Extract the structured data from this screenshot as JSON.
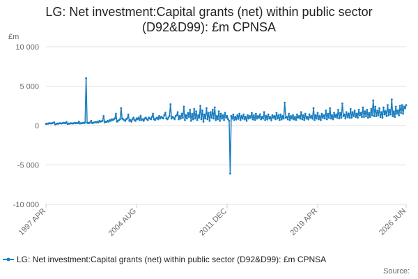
{
  "chart_data": {
    "type": "line",
    "title": "LG: Net investment:Capital grants (net) within public sector (D92&D99): £m CPNSA",
    "y_label": "£m",
    "source": "Source:",
    "categories": [
      "1997 APR",
      null,
      null,
      null,
      null,
      null,
      null,
      null,
      null,
      null,
      null,
      null,
      null,
      null,
      null,
      null,
      null,
      null,
      null,
      null,
      null,
      null,
      null,
      null,
      null,
      null,
      null,
      null,
      null,
      null,
      null,
      null,
      null,
      null,
      null,
      null,
      null,
      null,
      null,
      null,
      null,
      null,
      null,
      null,
      null,
      null,
      null,
      null,
      null,
      null,
      null,
      null,
      null,
      null,
      null,
      null,
      null,
      null,
      null,
      null,
      null,
      null,
      null,
      null,
      null,
      null,
      null,
      null,
      null,
      null,
      null,
      null,
      null,
      null,
      null,
      null,
      null,
      null,
      null,
      null,
      null,
      null,
      null,
      null,
      null,
      null,
      null,
      null,
      "2004 AUG",
      null,
      null,
      null,
      null,
      null,
      null,
      null,
      null,
      null,
      null,
      null,
      null,
      null,
      null,
      null,
      null,
      null,
      null,
      null,
      null,
      null,
      null,
      null,
      null,
      null,
      null,
      null,
      null,
      null,
      null,
      null,
      null,
      null,
      null,
      null,
      null,
      null,
      null,
      null,
      null,
      null,
      null,
      null,
      null,
      null,
      null,
      null,
      null,
      null,
      null,
      null,
      null,
      null,
      null,
      null,
      null,
      null,
      null,
      null,
      null,
      null,
      null,
      null,
      null,
      null,
      null,
      null,
      null,
      null,
      null,
      null,
      null,
      null,
      null,
      null,
      null,
      null,
      null,
      null,
      null,
      null,
      null,
      null,
      null,
      null,
      null,
      null,
      "2011 DEC",
      null,
      null,
      null,
      null,
      null,
      null,
      null,
      null,
      null,
      null,
      null,
      null,
      null,
      null,
      null,
      null,
      null,
      null,
      null,
      null,
      null,
      null,
      null,
      null,
      null,
      null,
      null,
      null,
      null,
      null,
      null,
      null,
      null,
      null,
      null,
      null,
      null,
      null,
      null,
      null,
      null,
      null,
      null,
      null,
      null,
      null,
      null,
      null,
      null,
      null,
      null,
      null,
      null,
      null,
      null,
      null,
      null,
      null,
      null,
      null,
      null,
      null,
      null,
      null,
      null,
      null,
      null,
      null,
      null,
      null,
      null,
      null,
      null,
      null,
      null,
      null,
      null,
      null,
      null,
      null,
      null,
      null,
      null,
      null,
      null,
      null,
      null,
      "2019 APR",
      null,
      null,
      null,
      null,
      null,
      null,
      null,
      null,
      null,
      null,
      null,
      null,
      null,
      null,
      null,
      null,
      null,
      null,
      null,
      null,
      null,
      null,
      null,
      null,
      null,
      null,
      null,
      null,
      null,
      null,
      null,
      null,
      null,
      null,
      null,
      null,
      null,
      null,
      null,
      null,
      null,
      null,
      null,
      null,
      null,
      null,
      null,
      null,
      null,
      null,
      null,
      null,
      null,
      null,
      null,
      null,
      null,
      null,
      null,
      null,
      null,
      null,
      null,
      null,
      null,
      null,
      null,
      null,
      null,
      null,
      null,
      null,
      null,
      null,
      null,
      null,
      null,
      null,
      null,
      null,
      null,
      null,
      null,
      null,
      null,
      "2026 JUN"
    ],
    "series": [
      {
        "name": "LG: Net investment:Capital grants (net) within public sector (D92&D99): £m CPNSA",
        "color": "#1a7dc0",
        "values": [
          200,
          250,
          220,
          300,
          280,
          260,
          300,
          350,
          400,
          150,
          200,
          250,
          220,
          300,
          280,
          260,
          300,
          350,
          320,
          300,
          450,
          200,
          250,
          220,
          300,
          280,
          250,
          300,
          350,
          300,
          320,
          300,
          500,
          250,
          300,
          280,
          350,
          300,
          400,
          6000,
          350,
          300,
          320,
          400,
          600,
          300,
          350,
          400,
          450,
          400,
          500,
          400,
          600,
          500,
          550,
          600,
          1200,
          400,
          500,
          450,
          600,
          500,
          700,
          600,
          800,
          700,
          800,
          900,
          1500,
          500,
          600,
          700,
          800,
          2200,
          900,
          800,
          700,
          600,
          800,
          900,
          1400,
          600,
          700,
          500,
          800,
          1000,
          700,
          600,
          900,
          800,
          1000,
          700,
          1200,
          700,
          800,
          600,
          900,
          1000,
          800,
          700,
          1000,
          900,
          800,
          1100,
          1500,
          800,
          700,
          900,
          1000,
          800,
          1200,
          900,
          1100,
          1000,
          900,
          1300,
          1600,
          900,
          800,
          1000,
          1200,
          2700,
          900,
          1100,
          1000,
          800,
          1200,
          1300,
          1700,
          800,
          1200,
          900,
          1500,
          1000,
          2400,
          700,
          1300,
          900,
          1600,
          1100,
          2000,
          600,
          1500,
          800,
          2100,
          900,
          1800,
          700,
          1300,
          1000,
          2500,
          800,
          1900,
          500,
          1400,
          900,
          2200,
          800,
          1600,
          600,
          1700,
          1000,
          2000,
          900,
          2300,
          700,
          1200,
          800,
          1800,
          600,
          1500,
          900,
          1300,
          700,
          1600,
          1000,
          1200,
          800,
          600,
          -6100,
          1200,
          900,
          1400,
          700,
          1100,
          800,
          1300,
          900,
          1500,
          700,
          1200,
          900,
          1400,
          800,
          1100,
          600,
          1300,
          900,
          1200,
          1000,
          1600,
          800,
          1300,
          700,
          1500,
          900,
          1200,
          1000,
          1400,
          800,
          1100,
          900,
          1700,
          700,
          1200,
          800,
          1400,
          900,
          1100,
          700,
          1300,
          1000,
          1200,
          800,
          1600,
          900,
          1300,
          700,
          1400,
          800,
          1200,
          900,
          2900,
          1000,
          1100,
          800,
          1500,
          700,
          1200,
          900,
          1300,
          800,
          1100,
          700,
          1400,
          1000,
          1200,
          900,
          1700,
          800,
          1300,
          700,
          1500,
          900,
          1100,
          800,
          1400,
          1000,
          1200,
          900,
          2200,
          700,
          1300,
          900,
          1600,
          800,
          1200,
          700,
          1500,
          1000,
          1300,
          900,
          1900,
          800,
          1500,
          1000,
          2200,
          900,
          1300,
          800,
          1600,
          1100,
          1400,
          1000,
          2000,
          900,
          1600,
          1000,
          2800,
          1200,
          1400,
          900,
          1700,
          1100,
          1500,
          1000,
          2100,
          1000,
          1700,
          1200,
          1900,
          1100,
          1500,
          1000,
          2000,
          1300,
          1600,
          1100,
          2300,
          1100,
          1800,
          1200,
          2000,
          1000,
          1600,
          1100,
          2100,
          1300,
          3200,
          1200,
          2400,
          1200,
          1900,
          1300,
          2200,
          1100,
          1700,
          1000,
          2300,
          1400,
          1800,
          1200,
          2600,
          1300,
          2000,
          1400,
          3300,
          1200,
          1800,
          1100,
          2400,
          1500,
          1900,
          1300,
          2500,
          1600,
          2600,
          1500,
          2400,
          2200,
          2600
        ]
      }
    ],
    "ylim": [
      -10000,
      10000
    ],
    "yticks": [
      {
        "value": 10000,
        "label": "10 000"
      },
      {
        "value": 5000,
        "label": "5 000"
      },
      0,
      {
        "value": -5000,
        "label": "-5 000"
      },
      {
        "value": -10000,
        "label": "-10 000"
      }
    ],
    "grid": true,
    "legend": "bottom"
  }
}
